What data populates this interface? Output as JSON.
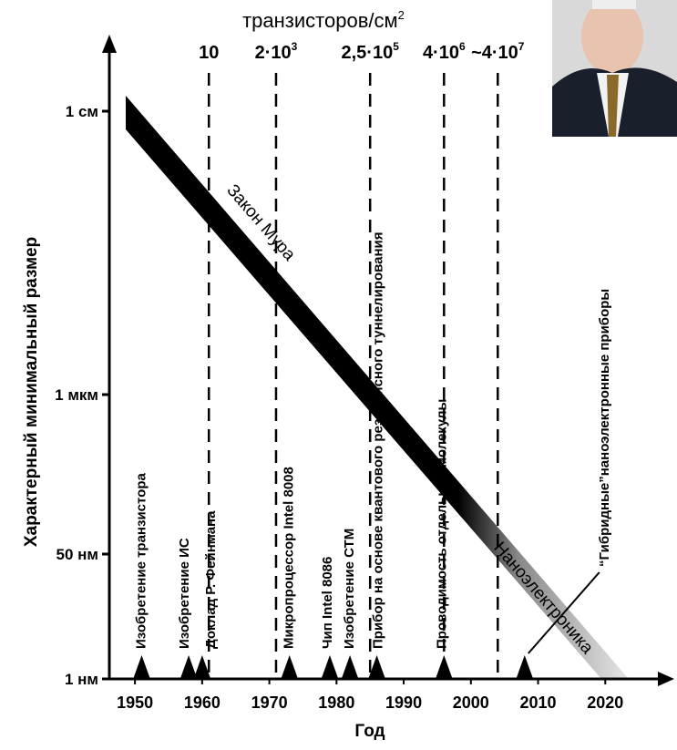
{
  "chart_data": {
    "type": "timeline",
    "top_title": "транзисторов/см",
    "top_title_sup": "2",
    "x_title": "Год",
    "y_title": "Характерный минимальный размер",
    "xlim": [
      1947,
      2030
    ],
    "xticks": [
      1950,
      1960,
      1970,
      1980,
      1990,
      2000,
      2010,
      2020
    ],
    "yticks": [
      "1 см",
      "1 мкм",
      "50 нм",
      "1 нм"
    ],
    "band_labels": [
      "Закон Мура",
      "Наноэлектроника"
    ],
    "density_lines": [
      {
        "year": 1961,
        "label": "10",
        "sup": null
      },
      {
        "year": 1971,
        "label": "2·10",
        "sup": "3"
      },
      {
        "year": 1985,
        "label": "2,5·10",
        "sup": "5"
      },
      {
        "year": 1996,
        "label": "4·10",
        "sup": "6"
      },
      {
        "year": 2004,
        "label": "~4·10",
        "sup": "7"
      }
    ],
    "events": [
      {
        "year": 1951,
        "label": "Изобретение транзистора"
      },
      {
        "year": 1958,
        "label": "Изобретение ИС"
      },
      {
        "year": 1960,
        "label": "Доклад Р. Фейнмана"
      },
      {
        "year": 1973,
        "label": "Микропроцессор Intel 8008"
      },
      {
        "year": 1979,
        "label": "Чип Intel 8086"
      },
      {
        "year": 1982,
        "label": "Изобретение СТМ"
      },
      {
        "year": 1986,
        "label": "Прибор на основе квантового резонансного туннелирования"
      },
      {
        "year": 1996,
        "label": "Проводимость отдельной молекулы"
      },
      {
        "year": 2008,
        "label": "“Гибридные”наноэлектронные приборы"
      }
    ]
  }
}
